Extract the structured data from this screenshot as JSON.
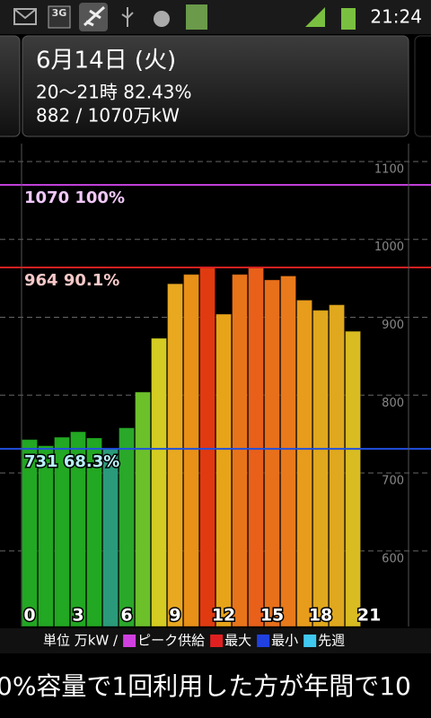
{
  "status_bar": {
    "network": "3G",
    "time": "21:24"
  },
  "header": {
    "date": "6月14日 (火)",
    "usage": "20～21時 82.43%",
    "amount": "882 / 1070万kW"
  },
  "chart_data": {
    "type": "bar",
    "x": [
      0,
      1,
      2,
      3,
      4,
      5,
      6,
      7,
      8,
      9,
      10,
      11,
      12,
      13,
      14,
      15,
      16,
      17,
      18,
      19,
      20
    ],
    "values": [
      743,
      735,
      746,
      753,
      745,
      731,
      758,
      804,
      873,
      943,
      955,
      964,
      904,
      955,
      964,
      948,
      953,
      922,
      909,
      916,
      882
    ],
    "colors": [
      "#22a822",
      "#22a822",
      "#22a822",
      "#22a822",
      "#22a822",
      "#2a9a7a",
      "#2aa82a",
      "#6cc02a",
      "#d4cc22",
      "#e8a820",
      "#e89018",
      "#e03a10",
      "#e8a418",
      "#e8741a",
      "#e8601a",
      "#e8701a",
      "#e87a1c",
      "#e89c1c",
      "#e0a81e",
      "#e0a81e",
      "#d8bc22"
    ],
    "xlim": [
      -0.5,
      23.44
    ],
    "xticks": [
      0,
      3,
      6,
      9,
      12,
      15,
      18,
      21
    ],
    "ylim": [
      503,
      1123
    ],
    "yticks": [
      600,
      700,
      800,
      900,
      1000,
      1100
    ],
    "grid": true,
    "reference_lines": [
      {
        "name": "ピーク供給",
        "value": 1070,
        "label": "1070 100%",
        "color": "#c040d8",
        "text_color": "#f0c8f8"
      },
      {
        "name": "最大",
        "value": 964,
        "label": "964 90.1%",
        "color": "#d82020",
        "text_color": "#f8c8c8"
      },
      {
        "name": "最小",
        "value": 731,
        "label": "731 68.3%",
        "color": "#2050e0",
        "text_color": "#b8f0f8"
      }
    ],
    "legend_prefix": "単位 万kW /",
    "legend": [
      {
        "name": "ピーク供給",
        "color": "#d040e0"
      },
      {
        "name": "最大",
        "color": "#e02020"
      },
      {
        "name": "最小",
        "color": "#2040e0"
      },
      {
        "name": "先週",
        "color": "#40c8f0"
      }
    ]
  },
  "ticker": "0%容量で1回利用した方が年間で10"
}
